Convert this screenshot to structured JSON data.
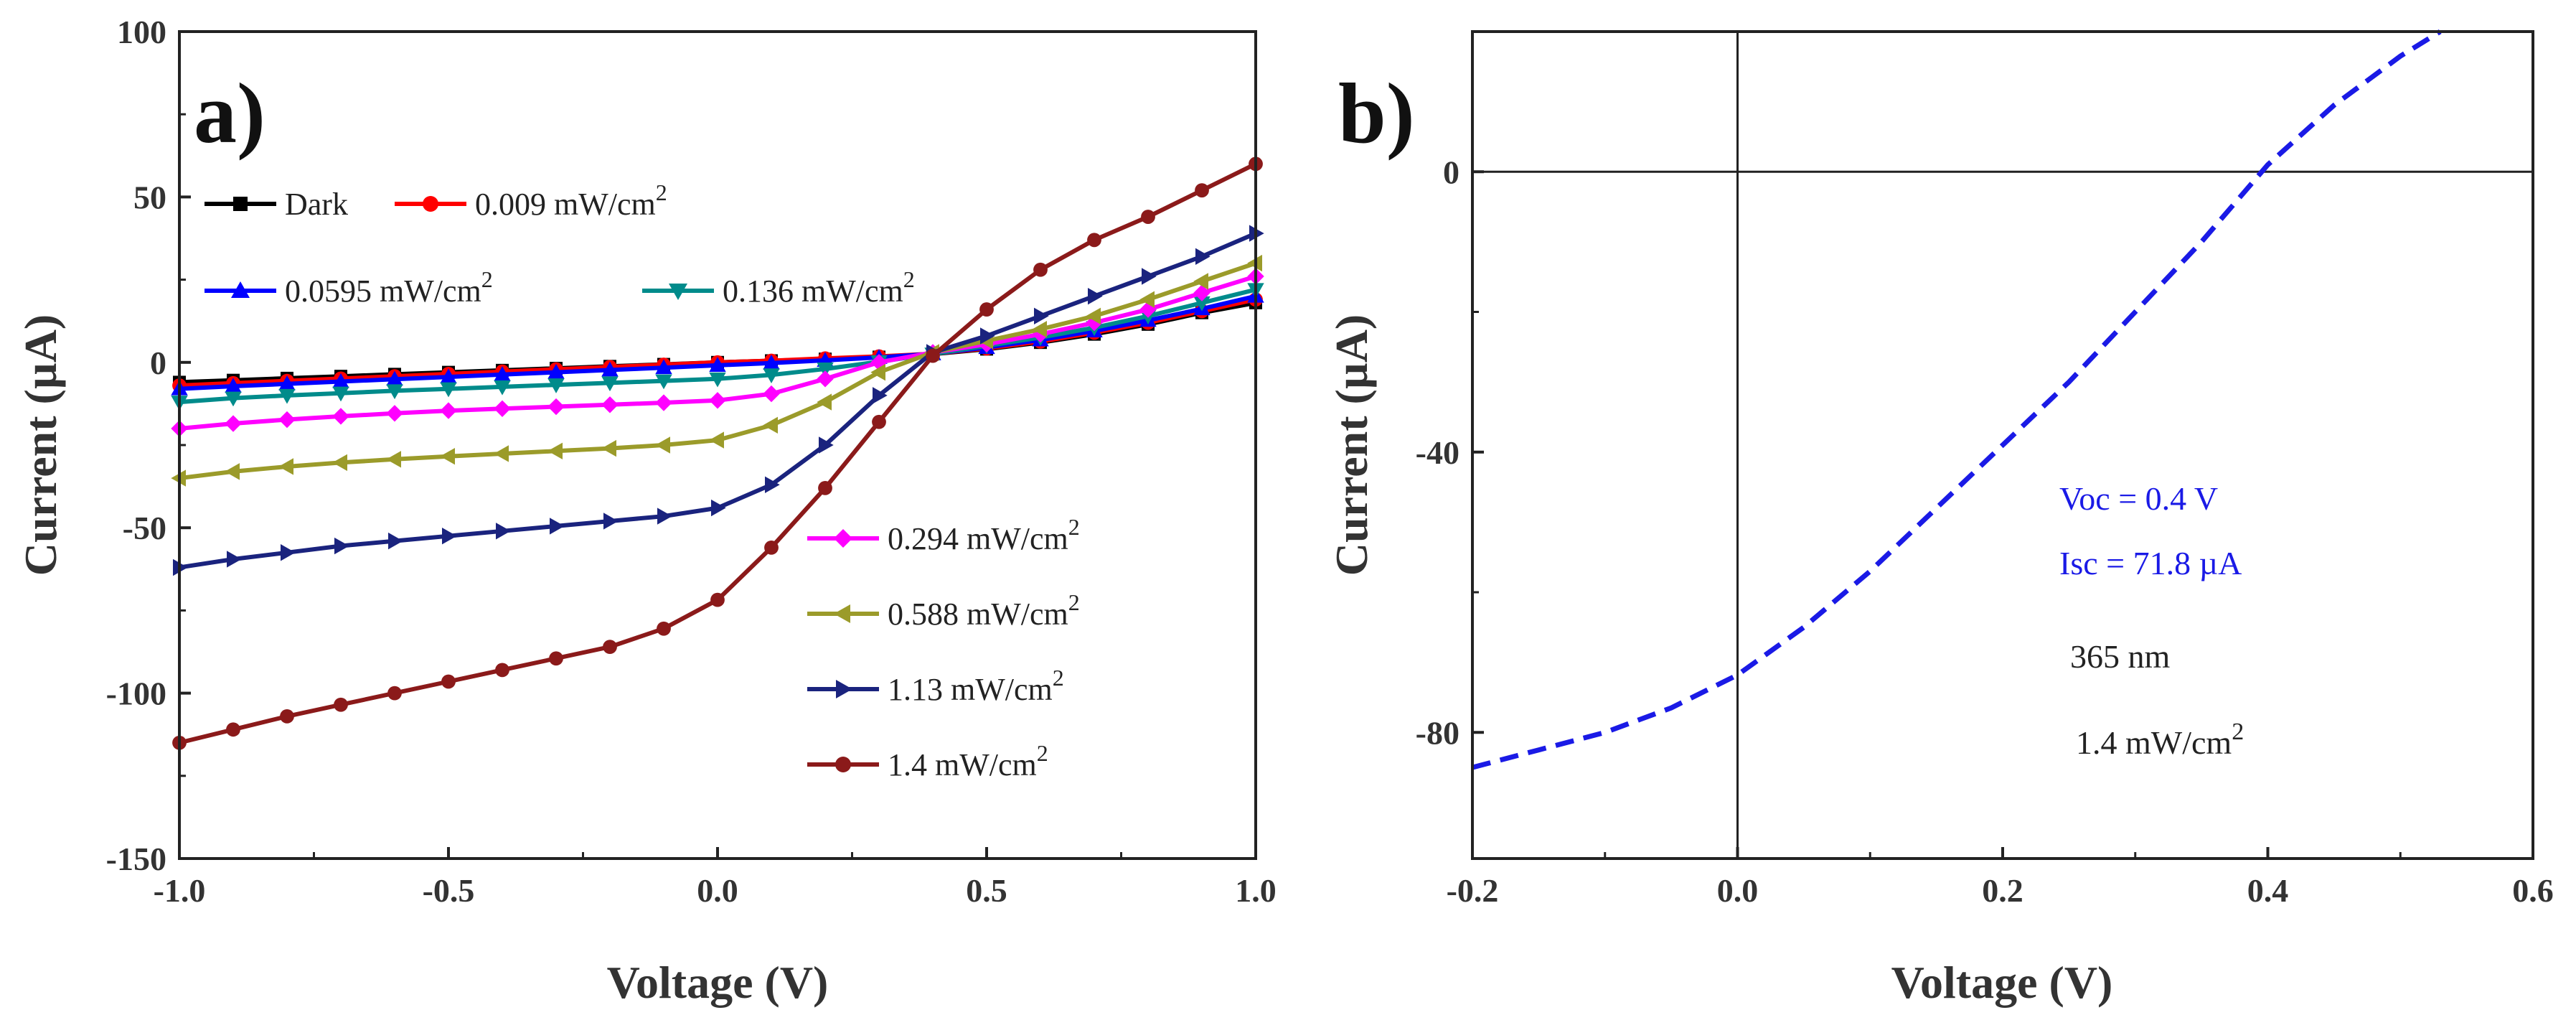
{
  "chart_data": [
    {
      "panel": "a)",
      "type": "line",
      "xlabel": "Voltage  (V)",
      "ylabel": "Current (µA)",
      "xlim": [
        -1.0,
        1.0
      ],
      "ylim": [
        -150,
        100
      ],
      "xticks": [
        "-1.0",
        "-0.5",
        "0.0",
        "0.5",
        "1.0"
      ],
      "yticks": [
        "-150",
        "-100",
        "-50",
        "0",
        "50",
        "100"
      ],
      "x": [
        -1.0,
        -0.9,
        -0.8,
        -0.7,
        -0.6,
        -0.5,
        -0.4,
        -0.3,
        -0.2,
        -0.1,
        0.0,
        0.1,
        0.2,
        0.3,
        0.4,
        0.5,
        0.6,
        0.7,
        0.8,
        0.9,
        1.0
      ],
      "series": [
        {
          "name": "Dark",
          "unit": "",
          "color": "#000000",
          "marker": "square",
          "values": [
            -6,
            -5.4,
            -4.8,
            -4.2,
            -3.6,
            -3,
            -2.4,
            -1.8,
            -1.2,
            -0.6,
            0,
            0.5,
            1,
            1.6,
            2.5,
            4,
            6,
            8.5,
            11.5,
            15,
            18
          ]
        },
        {
          "name": "0.009 mW/cm",
          "unit": "2",
          "color": "#ff0000",
          "marker": "circle",
          "values": [
            -7,
            -6.3,
            -5.6,
            -4.9,
            -4.2,
            -3.5,
            -2.8,
            -2.1,
            -1.4,
            -0.7,
            0,
            0.5,
            1.2,
            1.8,
            2.6,
            4.2,
            6.3,
            9,
            12,
            15.5,
            19
          ]
        },
        {
          "name": "0.0595 mW/cm",
          "unit": "2",
          "color": "#0000ff",
          "marker": "triangle-up",
          "values": [
            -8,
            -7.2,
            -6.5,
            -5.8,
            -5.1,
            -4.4,
            -3.7,
            -3,
            -2.3,
            -1.6,
            -0.9,
            -0.2,
            0.6,
            1.5,
            2.6,
            4.5,
            6.8,
            9.5,
            12.7,
            16.2,
            20
          ]
        },
        {
          "name": "0.136 mW/cm",
          "unit": "2",
          "color": "#008b8b",
          "marker": "triangle-down",
          "values": [
            -12,
            -10.8,
            -10,
            -9.3,
            -8.6,
            -8,
            -7.4,
            -6.8,
            -6.2,
            -5.6,
            -5,
            -3.8,
            -2,
            0.2,
            2.5,
            5,
            7.5,
            10.5,
            14,
            18,
            22
          ]
        },
        {
          "name": "0.294 mW/cm",
          "unit": "2",
          "color": "#ff00ff",
          "marker": "diamond",
          "values": [
            -20,
            -18.5,
            -17.3,
            -16.3,
            -15.4,
            -14.6,
            -14,
            -13.4,
            -12.8,
            -12.2,
            -11.5,
            -9.5,
            -5,
            0,
            3,
            5.5,
            8.5,
            12,
            16,
            21,
            26
          ]
        },
        {
          "name": "0.588 mW/cm",
          "unit": "2",
          "color": "#9b9b2a",
          "marker": "triangle-left",
          "values": [
            -35,
            -33,
            -31.5,
            -30.3,
            -29.3,
            -28.4,
            -27.6,
            -26.8,
            -26,
            -25,
            -23.5,
            -19,
            -12,
            -3,
            3,
            6.5,
            10,
            14,
            19,
            24.5,
            30
          ]
        },
        {
          "name": "1.13 mW/cm",
          "unit": "2",
          "color": "#1a237e",
          "marker": "triangle-right",
          "values": [
            -62,
            -59.5,
            -57.5,
            -55.5,
            -54,
            -52.5,
            -51,
            -49.5,
            -48,
            -46.5,
            -44,
            -37,
            -25,
            -10,
            3,
            8,
            14,
            20,
            26,
            32,
            39
          ]
        },
        {
          "name": "1.4 mW/cm",
          "unit": "2",
          "color": "#8b1a1a",
          "marker": "circle",
          "values": [
            -115,
            -111,
            -107,
            -103.5,
            -100,
            -96.5,
            -93,
            -89.5,
            -86,
            -80.5,
            -71.8,
            -56,
            -38,
            -18,
            2,
            16,
            28,
            37,
            44,
            52,
            60
          ]
        }
      ],
      "legend": [
        "Dark",
        "0.009 mW/cm2",
        "0.0595 mW/cm2",
        "0.136 mW/cm2",
        "0.294 mW/cm2",
        "0.588 mW/cm2",
        "1.13 mW/cm2",
        "1.4 mW/cm2"
      ]
    },
    {
      "panel": "b)",
      "type": "line",
      "xlabel": "Voltage  (V)",
      "ylabel": "Current  (µA)",
      "xlim": [
        -0.2,
        0.6
      ],
      "ylim": [
        -98,
        20
      ],
      "xticks": [
        "-0.2",
        "0.0",
        "0.2",
        "0.4",
        "0.6"
      ],
      "yticks": [
        "-80",
        "-40",
        "0"
      ],
      "series": [
        {
          "name": "1.4 mW/cm2 at 365 nm",
          "color": "#1a1ae6",
          "style": "dashed",
          "x": [
            -0.2,
            -0.15,
            -0.1,
            -0.05,
            0.0,
            0.05,
            0.1,
            0.15,
            0.2,
            0.25,
            0.3,
            0.35,
            0.4,
            0.45,
            0.5,
            0.53
          ],
          "values": [
            -85,
            -82.5,
            -80,
            -76.5,
            -71.8,
            -65,
            -57,
            -48,
            -39,
            -30,
            -20,
            -10,
            1,
            9.5,
            16.5,
            20
          ]
        }
      ],
      "annotations": {
        "voc": "Voc = 0.4 V",
        "isc": "Isc = 71.8 µA",
        "wavelength": "365 nm",
        "intensity": "1.4 mW/cm",
        "intensity_sup": "2"
      }
    }
  ]
}
